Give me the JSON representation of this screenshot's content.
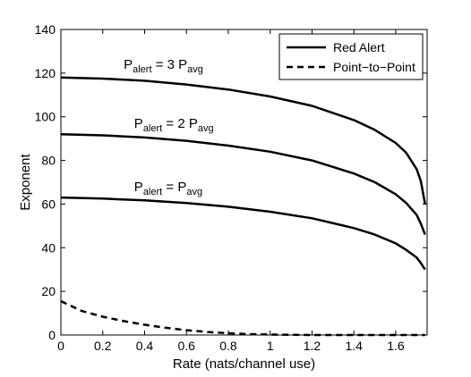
{
  "chart_data": {
    "type": "line",
    "xlabel": "Rate (nats/channel use)",
    "ylabel": "Exponent",
    "xlim": [
      0,
      1.75
    ],
    "ylim": [
      0,
      140
    ],
    "x_ticks": [
      "0",
      "0.2",
      "0.4",
      "0.6",
      "0.8",
      "1",
      "1.2",
      "1.4",
      "1.6"
    ],
    "x_tick_values": [
      0,
      0.2,
      0.4,
      0.6,
      0.8,
      1.0,
      1.2,
      1.4,
      1.6
    ],
    "y_ticks": [
      "0",
      "20",
      "40",
      "60",
      "80",
      "100",
      "120",
      "140"
    ],
    "y_tick_values": [
      0,
      20,
      40,
      60,
      80,
      100,
      120,
      140
    ],
    "grid": false,
    "legend_position": "top-right",
    "legend": [
      {
        "label": "Red Alert",
        "style": "solid"
      },
      {
        "label": "Point−to−Point",
        "style": "dashed"
      }
    ],
    "annotations": [
      {
        "main": "P",
        "sub1": "alert",
        "mid": " = 3 P",
        "sub2": "avg",
        "x": 0.3,
        "y": 122
      },
      {
        "main": "P",
        "sub1": "alert",
        "mid": " = 2 P",
        "sub2": "avg",
        "x": 0.35,
        "y": 95
      },
      {
        "main": "P",
        "sub1": "alert",
        "mid": " = P",
        "sub2": "avg",
        "x": 0.35,
        "y": 66
      }
    ],
    "series": [
      {
        "style": "solid",
        "x": [
          0,
          0.2,
          0.4,
          0.6,
          0.8,
          1.0,
          1.2,
          1.4,
          1.5,
          1.6,
          1.65,
          1.7,
          1.72,
          1.74
        ],
        "y": [
          118,
          117.5,
          116.5,
          114.8,
          112.5,
          109.3,
          105,
          98.5,
          94,
          88,
          83.5,
          76,
          70.5,
          60
        ]
      },
      {
        "style": "solid",
        "x": [
          0,
          0.2,
          0.4,
          0.6,
          0.8,
          1.0,
          1.2,
          1.4,
          1.5,
          1.6,
          1.65,
          1.7,
          1.72,
          1.74
        ],
        "y": [
          92,
          91.5,
          90.5,
          89,
          86.8,
          84,
          80,
          74,
          70,
          64.5,
          60.5,
          55,
          51,
          46
        ]
      },
      {
        "style": "solid",
        "x": [
          0,
          0.2,
          0.4,
          0.6,
          0.8,
          1.0,
          1.2,
          1.4,
          1.5,
          1.6,
          1.65,
          1.7,
          1.72,
          1.74
        ],
        "y": [
          63,
          62.5,
          61.7,
          60.5,
          58.8,
          56.5,
          53.5,
          49,
          46,
          42,
          39,
          35.5,
          33,
          30
        ]
      },
      {
        "style": "dashed",
        "x": [
          0,
          0.1,
          0.2,
          0.3,
          0.4,
          0.5,
          0.6,
          0.7,
          0.8,
          0.9,
          1.0,
          1.2,
          1.4,
          1.74
        ],
        "y": [
          15.5,
          11,
          8.4,
          6.4,
          4.7,
          3.3,
          2.2,
          1.4,
          0.8,
          0.4,
          0.2,
          0,
          0,
          0
        ]
      }
    ]
  }
}
